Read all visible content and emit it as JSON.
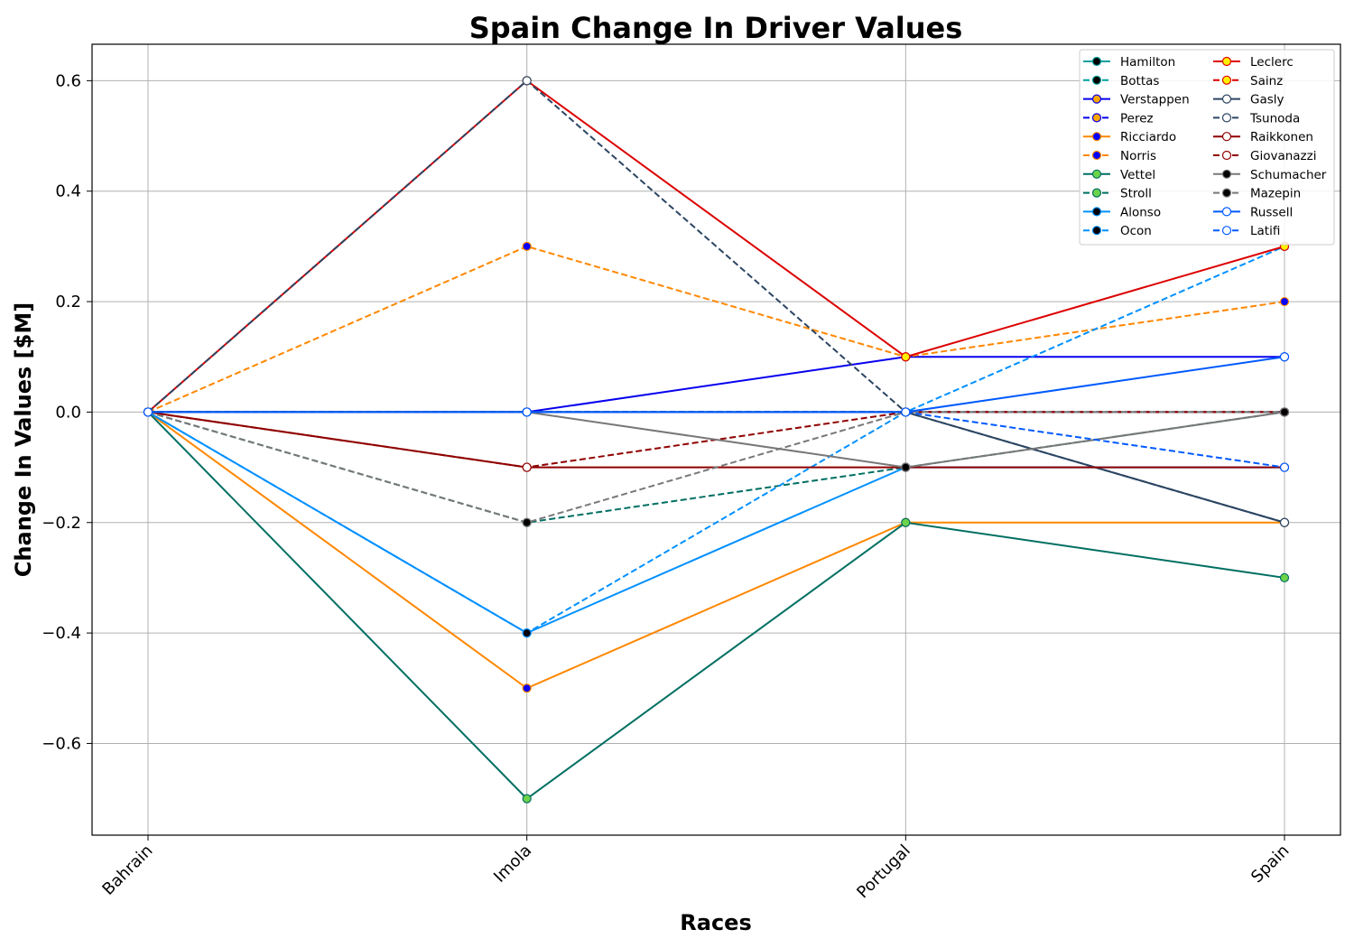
{
  "chart_data": {
    "type": "line",
    "title": "Spain Change In Driver Values",
    "xlabel": "Races",
    "ylabel": "Change In Values [$M]",
    "categories": [
      "Bahrain",
      "Imola",
      "Portugal",
      "Spain"
    ],
    "ylim": [
      -0.766,
      0.666
    ],
    "yticks": [
      0.6,
      0.4,
      0.2,
      0.0,
      -0.2,
      -0.4,
      -0.6
    ],
    "ytick_labels": [
      "0.6",
      "0.4",
      "0.2",
      "0.0",
      "−0.2",
      "−0.4",
      "−0.6"
    ],
    "grid": true,
    "legend_position": "top-right",
    "legend_columns": 2,
    "series": [
      {
        "name": "Hamilton",
        "values": [
          0,
          0,
          0,
          0
        ],
        "color": "#00a19c",
        "style": "solid",
        "marker_fill": "#000000"
      },
      {
        "name": "Bottas",
        "values": [
          0,
          0,
          0,
          0
        ],
        "color": "#00a19c",
        "style": "dashed",
        "marker_fill": "#000000"
      },
      {
        "name": "Verstappen",
        "values": [
          0,
          0,
          0.1,
          0.1
        ],
        "color": "#0600ef",
        "style": "solid",
        "marker_fill": "#ffa500"
      },
      {
        "name": "Perez",
        "values": [
          0,
          0,
          0,
          0
        ],
        "color": "#0600ef",
        "style": "dashed",
        "marker_fill": "#ffa500"
      },
      {
        "name": "Ricciardo",
        "values": [
          0,
          -0.5,
          -0.2,
          -0.2
        ],
        "color": "#ff8700",
        "style": "solid",
        "marker_fill": "#0000ff"
      },
      {
        "name": "Norris",
        "values": [
          0,
          0.3,
          0.1,
          0.2
        ],
        "color": "#ff8700",
        "style": "dashed",
        "marker_fill": "#0000ff"
      },
      {
        "name": "Vettel",
        "values": [
          0,
          -0.7,
          -0.2,
          -0.3
        ],
        "color": "#006f62",
        "style": "solid",
        "marker_fill": "#6cd34b"
      },
      {
        "name": "Stroll",
        "values": [
          0,
          -0.2,
          -0.1,
          0
        ],
        "color": "#006f62",
        "style": "dashed",
        "marker_fill": "#6cd34b"
      },
      {
        "name": "Alonso",
        "values": [
          0,
          -0.4,
          -0.1,
          -0.1
        ],
        "color": "#0090ff",
        "style": "solid",
        "marker_fill": "#000000"
      },
      {
        "name": "Ocon",
        "values": [
          0,
          -0.4,
          0,
          0.3
        ],
        "color": "#0090ff",
        "style": "dashed",
        "marker_fill": "#000000"
      },
      {
        "name": "Leclerc",
        "values": [
          0,
          0.6,
          0.1,
          0.3
        ],
        "color": "#dc0000",
        "style": "solid",
        "marker_fill": "#fff200"
      },
      {
        "name": "Sainz",
        "values": [
          0,
          0,
          0,
          0
        ],
        "color": "#dc0000",
        "style": "dashed",
        "marker_fill": "#fff200"
      },
      {
        "name": "Gasly",
        "values": [
          0,
          0,
          0,
          -0.2
        ],
        "color": "#2b4562",
        "style": "solid",
        "marker_fill": "#ffffff"
      },
      {
        "name": "Tsunoda",
        "values": [
          0,
          0.6,
          0,
          -0.2
        ],
        "color": "#2b4562",
        "style": "dashed",
        "marker_fill": "#ffffff"
      },
      {
        "name": "Raikkonen",
        "values": [
          0,
          -0.1,
          -0.1,
          -0.1
        ],
        "color": "#900000",
        "style": "solid",
        "marker_fill": "#ffffff"
      },
      {
        "name": "Giovanazzi",
        "values": [
          0,
          -0.1,
          0,
          0
        ],
        "color": "#900000",
        "style": "dashed",
        "marker_fill": "#ffffff"
      },
      {
        "name": "Schumacher",
        "values": [
          0,
          0,
          -0.1,
          0
        ],
        "color": "#787878",
        "style": "solid",
        "marker_fill": "#000000"
      },
      {
        "name": "Mazepin",
        "values": [
          0,
          -0.2,
          0,
          0
        ],
        "color": "#787878",
        "style": "dashed",
        "marker_fill": "#000000"
      },
      {
        "name": "Russell",
        "values": [
          0,
          0,
          0,
          0.1
        ],
        "color": "#005aff",
        "style": "solid",
        "marker_fill": "#ffffff"
      },
      {
        "name": "Latifi",
        "values": [
          0,
          0,
          0,
          -0.1
        ],
        "color": "#005aff",
        "style": "dashed",
        "marker_fill": "#ffffff"
      }
    ]
  }
}
